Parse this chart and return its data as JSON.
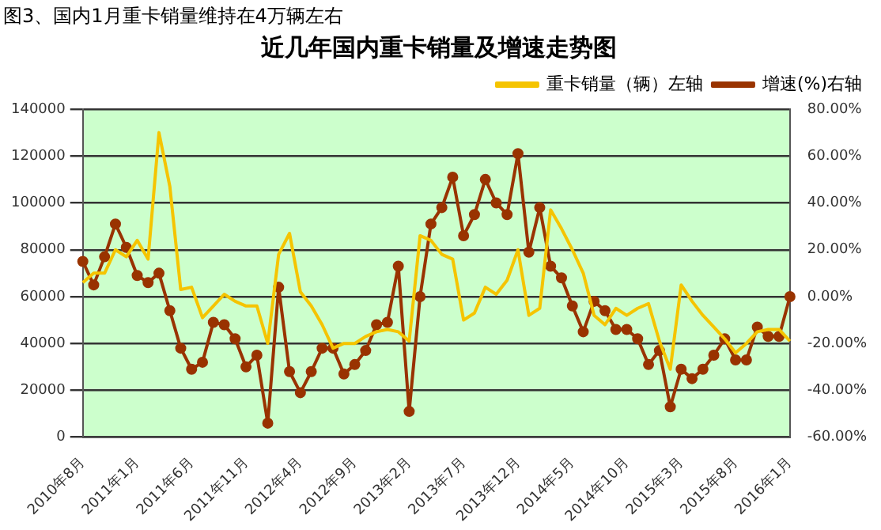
{
  "chart_data": {
    "type": "line",
    "title": "近几年国内重卡销量及增速走势图",
    "annotations": [
      "图3、国内1月重卡销量维持在4万辆左右"
    ],
    "categories": [
      "2010年8月",
      null,
      null,
      null,
      null,
      "2011年1月",
      null,
      null,
      null,
      null,
      "2011年6月",
      null,
      null,
      null,
      null,
      "2011年11月",
      null,
      null,
      null,
      null,
      "2012年4月",
      null,
      null,
      null,
      null,
      "2012年9月",
      null,
      null,
      null,
      null,
      "2013年2月",
      null,
      null,
      null,
      null,
      "2013年7月",
      null,
      null,
      null,
      null,
      "2013年12月",
      null,
      null,
      null,
      null,
      "2014年5月",
      null,
      null,
      null,
      null,
      "2014年10月",
      null,
      null,
      null,
      null,
      "2015年3月",
      null,
      null,
      null,
      null,
      "2015年8月",
      null,
      null,
      null,
      null,
      "2016年1月"
    ],
    "series": [
      {
        "name": "重卡销量（辆）左轴",
        "color": "#f5c400",
        "marker": "none",
        "values": [
          66000,
          70000,
          70000,
          80000,
          77000,
          84000,
          76000,
          130000,
          107000,
          63000,
          64000,
          51000,
          56000,
          61000,
          58000,
          56000,
          56000,
          40000,
          78000,
          87000,
          62000,
          56000,
          48000,
          38000,
          40000,
          40000,
          43000,
          45000,
          46000,
          45000,
          41000,
          86000,
          84000,
          78000,
          76000,
          50000,
          53000,
          64000,
          61000,
          67000,
          80000,
          52000,
          55000,
          97000,
          89000,
          80000,
          70000,
          52000,
          48000,
          55000,
          52000,
          55000,
          57000,
          41000,
          29000,
          65000,
          58000,
          52000,
          47000,
          42000,
          36000,
          40000,
          45000,
          46000,
          46000,
          41000
        ]
      },
      {
        "name": "增速(%)右轴",
        "color": "#993300",
        "marker": "circle",
        "axis": "y2",
        "values": [
          15,
          5,
          17,
          31,
          21,
          9,
          6,
          10,
          -6,
          -22,
          -31,
          -28,
          -11,
          -12,
          -18,
          -30,
          -25,
          -54,
          4,
          -32,
          -41,
          -32,
          -22,
          -22,
          -33,
          -29,
          -23,
          -12,
          -11,
          13,
          -49,
          0,
          31,
          38,
          51,
          26,
          35,
          50,
          40,
          35,
          61,
          19,
          38,
          13,
          8,
          -4,
          -15,
          -2,
          -6,
          -14,
          -14,
          -18,
          -29,
          -23,
          -47,
          -31,
          -35,
          -31,
          -25,
          -18,
          -27,
          -27,
          -13,
          -17,
          -17,
          0
        ]
      }
    ],
    "ylim": [
      0,
      140000
    ],
    "yticks": [
      0,
      20000,
      40000,
      60000,
      80000,
      100000,
      120000,
      140000
    ],
    "y2lim": [
      -60,
      80
    ],
    "y2ticks": [
      {
        "value": -60,
        "label": "-60.00%"
      },
      {
        "value": -40,
        "label": "-40.00%"
      },
      {
        "value": -20,
        "label": "-20.00%"
      },
      {
        "value": 0,
        "label": "0.00%"
      },
      {
        "value": 20,
        "label": "20.00%"
      },
      {
        "value": 40,
        "label": "40.00%"
      },
      {
        "value": 60,
        "label": "60.00%"
      },
      {
        "value": 80,
        "label": "80.00%"
      }
    ],
    "grid": "y",
    "legend": "top right",
    "line_style": "solid"
  }
}
